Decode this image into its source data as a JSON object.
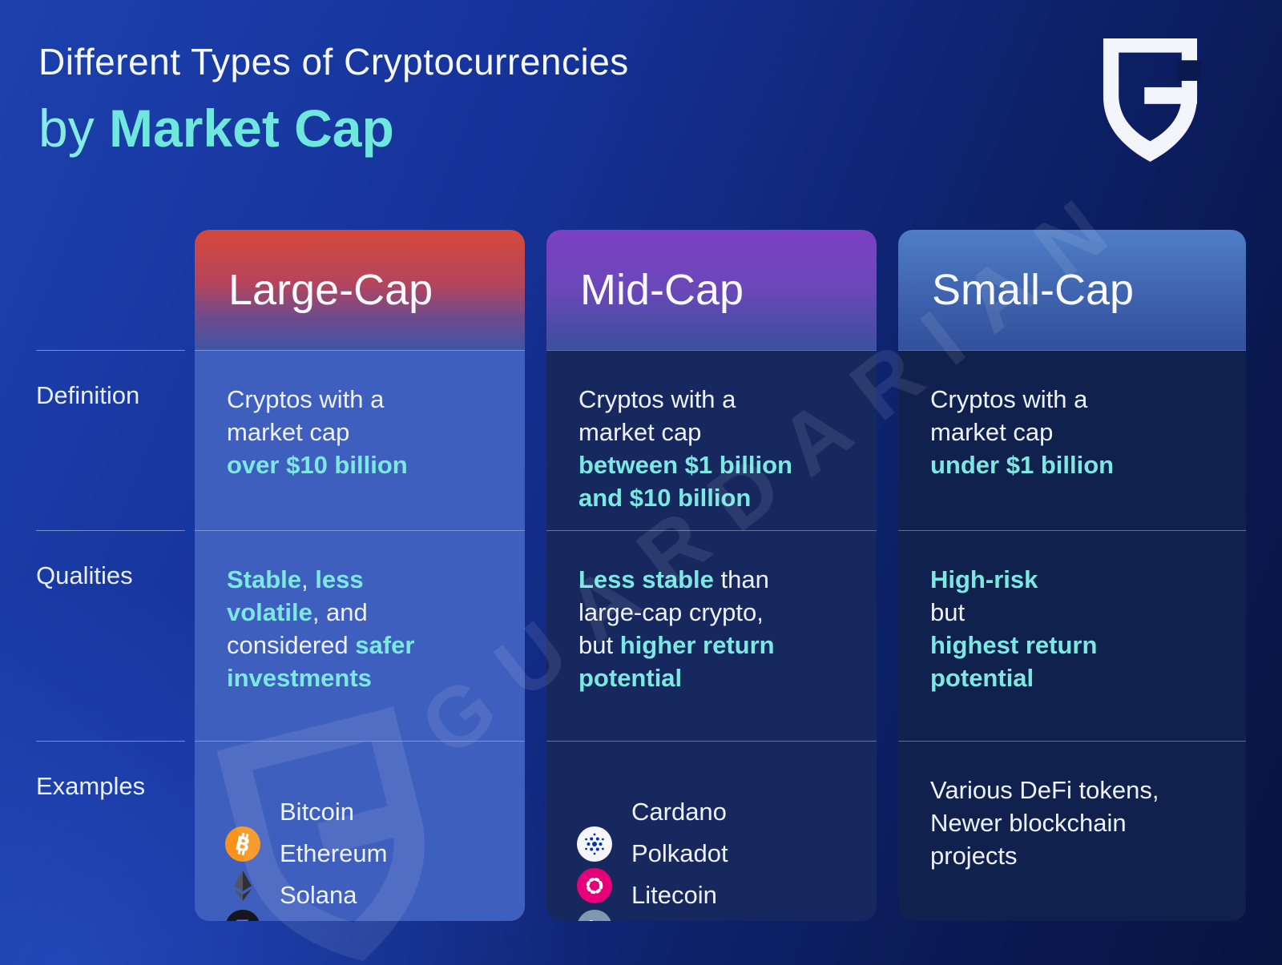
{
  "header": {
    "title": "Different Types of Cryptocurrencies",
    "subtitle_prefix": "by ",
    "subtitle_emphasis": "Market Cap",
    "accent_color": "#6fe7df",
    "logo": "guardarian-shield"
  },
  "watermark": "GUARDARIAN",
  "row_labels": [
    "Definition",
    "Qualities",
    "Examples"
  ],
  "columns": [
    {
      "title": "Large-Cap",
      "header_colors": [
        "#d6483b",
        "#3e55a4"
      ],
      "body_color": "#3f5fbe",
      "definition": [
        {
          "t": "Cryptos with a\nmarket cap\n"
        },
        {
          "t": "over $10 billion",
          "hl": true
        }
      ],
      "qualities": [
        {
          "t": "Stable",
          "hl": true
        },
        {
          "t": ", "
        },
        {
          "t": "less\nvolatile",
          "hl": true
        },
        {
          "t": ", and\nconsidered "
        },
        {
          "t": "safer\ninvestments",
          "hl": true
        }
      ],
      "examples": [
        {
          "name": "Bitcoin",
          "icon": "bitcoin-icon",
          "color": "#F7931A"
        },
        {
          "name": "Ethereum",
          "icon": "ethereum-icon",
          "color": "#3B3D47"
        },
        {
          "name": "Solana",
          "icon": "solana-icon",
          "color": "#16171D"
        }
      ]
    },
    {
      "title": "Mid-Cap",
      "header_colors": [
        "#7d3fc4",
        "#3b4f9f"
      ],
      "body_color": "#17285f",
      "definition": [
        {
          "t": "Cryptos with a\nmarket cap\n"
        },
        {
          "t": "between $1 billion\nand $10 billion",
          "hl": true
        }
      ],
      "qualities": [
        {
          "t": "Less stable",
          "hl": true
        },
        {
          "t": " than\nlarge-cap crypto,\nbut "
        },
        {
          "t": "higher return\npotential",
          "hl": true
        }
      ],
      "examples": [
        {
          "name": "Cardano",
          "icon": "cardano-icon",
          "color": "#0033AD"
        },
        {
          "name": "Polkadot",
          "icon": "polkadot-icon",
          "color": "#E6007A"
        },
        {
          "name": "Litecoin",
          "icon": "litecoin-icon",
          "color": "#8199AE"
        }
      ]
    },
    {
      "title": "Small-Cap",
      "header_colors": [
        "#4e7ec7",
        "#32509b"
      ],
      "body_color": "#11214d",
      "definition": [
        {
          "t": "Cryptos with a\nmarket cap\n"
        },
        {
          "t": "under $1 billion",
          "hl": true
        }
      ],
      "qualities": [
        {
          "t": "High-risk",
          "hl": true
        },
        {
          "t": "\nbut\n"
        },
        {
          "t": "highest return\npotential",
          "hl": true
        }
      ],
      "examples_text": [
        {
          "t": "Various DeFi tokens,\nNewer blockchain\nprojects"
        }
      ]
    }
  ]
}
